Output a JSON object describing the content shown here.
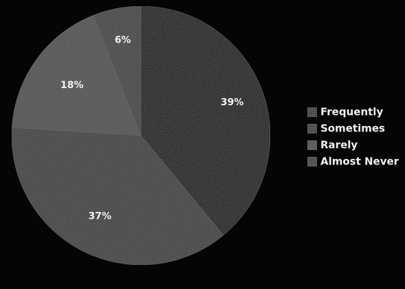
{
  "chart_data": {
    "type": "pie",
    "categories": [
      "Frequently",
      "Sometimes",
      "Rarely",
      "Almost Never"
    ],
    "values": [
      39,
      37,
      18,
      6
    ],
    "data_labels": [
      "39%",
      "37%",
      "18%",
      "6%"
    ],
    "colors": [
      "#0b0b0b",
      "#3e3e3e",
      "#505050",
      "#434343"
    ],
    "legend_placement": "right",
    "grid": false
  }
}
